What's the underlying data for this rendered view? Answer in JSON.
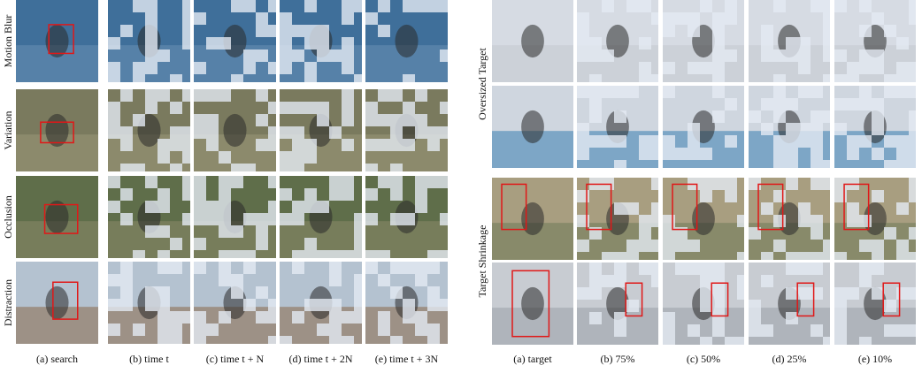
{
  "left_panel": {
    "row_labels": [
      "Motion Blur",
      "Variation",
      "Occlusion",
      "Distraction"
    ],
    "column_captions": [
      "(a) search",
      "(b) time t",
      "(c) time t + N",
      "(d) time t + 2N",
      "(e) time t + 3N"
    ]
  },
  "right_panel": {
    "row_labels": [
      "Oversized Target",
      "Target Shrinkage"
    ],
    "column_captions": [
      "(a) target",
      "(b) 75%",
      "(c) 50%",
      "(d) 25%",
      "(e) 10%"
    ]
  }
}
